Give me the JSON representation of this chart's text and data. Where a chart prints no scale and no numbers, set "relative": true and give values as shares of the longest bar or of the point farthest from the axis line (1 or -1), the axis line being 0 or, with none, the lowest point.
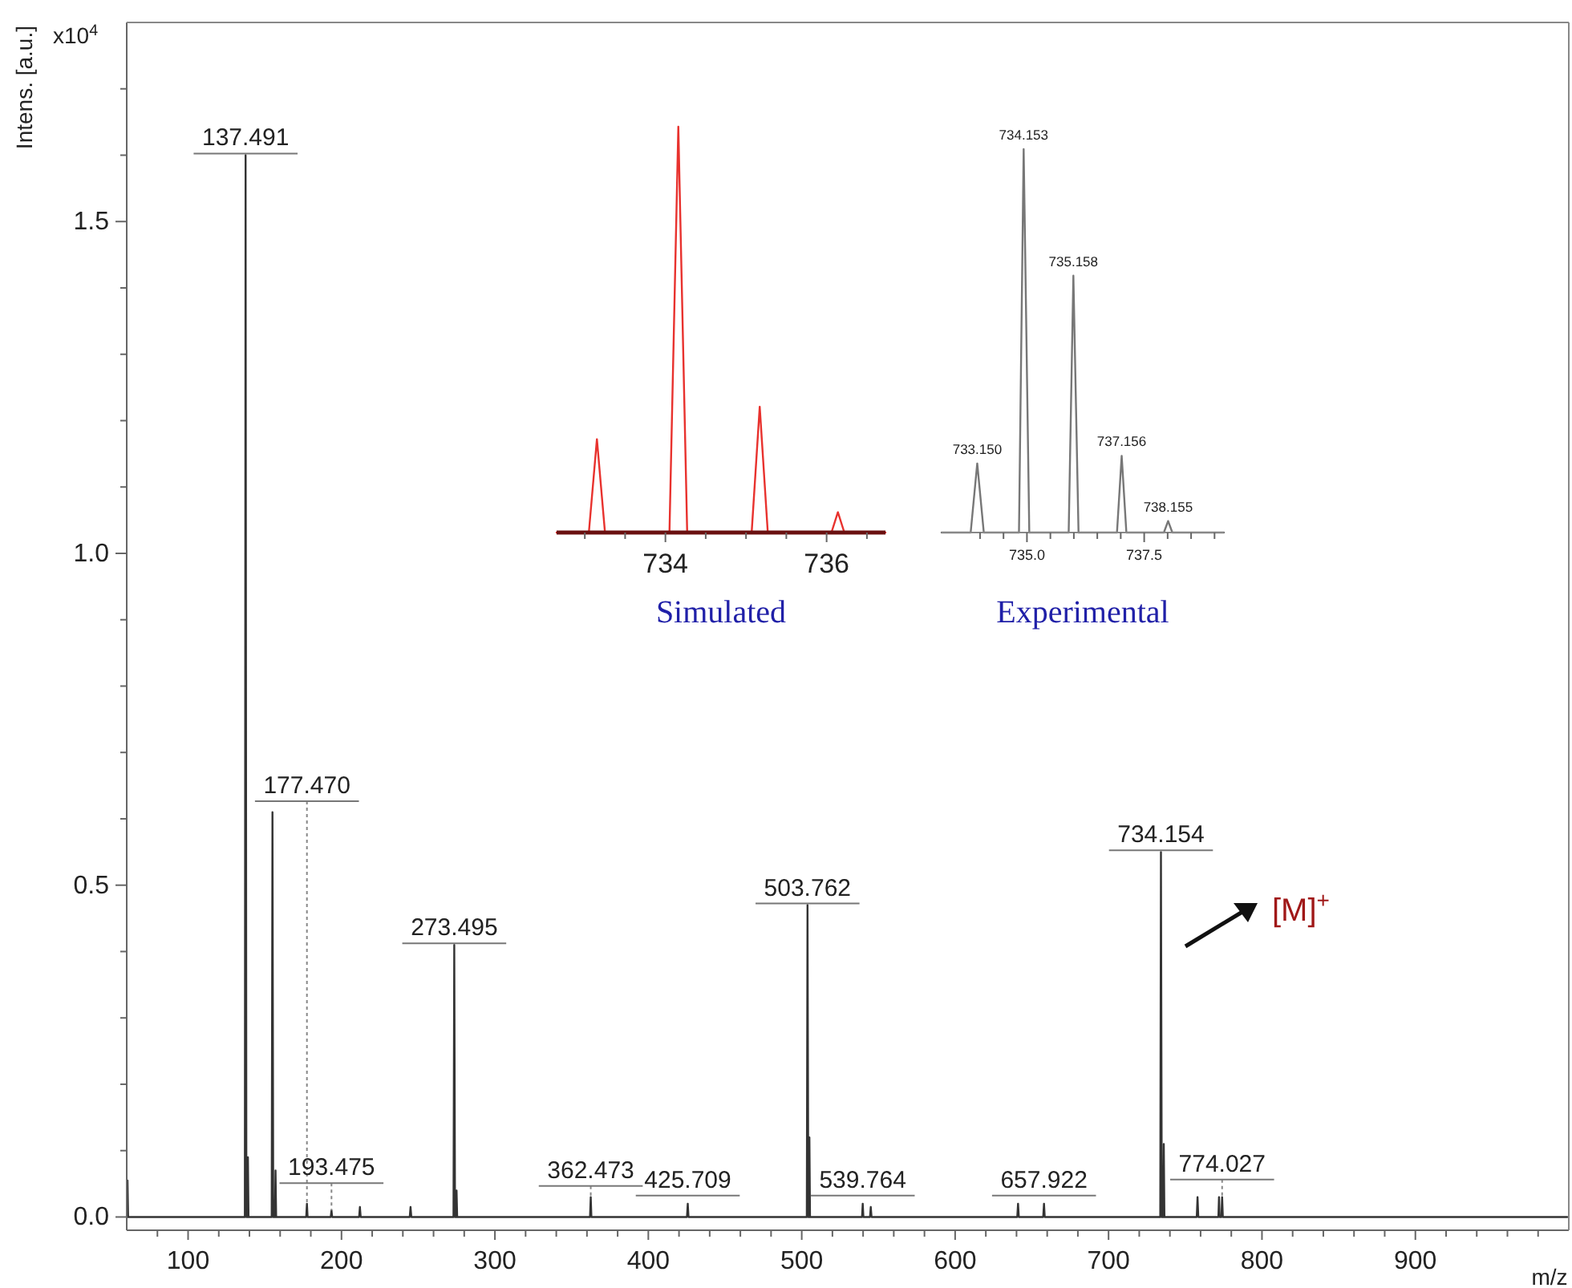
{
  "chart_data": [
    {
      "type": "line",
      "xlabel": "m/z",
      "ylabel": "Intens. [a.u.]",
      "xlim": [
        60,
        1000
      ],
      "ylim": [
        -0.02,
        1.8
      ],
      "xticks": [
        {
          "value": 80,
          "label": null
        },
        100,
        {
          "value": 120,
          "label": null
        },
        {
          "value": 140,
          "label": null
        },
        {
          "value": 160,
          "label": null
        },
        {
          "value": 180,
          "label": null
        },
        200,
        {
          "value": 220,
          "label": null
        },
        {
          "value": 240,
          "label": null
        },
        {
          "value": 260,
          "label": null
        },
        {
          "value": 280,
          "label": null
        },
        300,
        {
          "value": 320,
          "label": null
        },
        {
          "value": 340,
          "label": null
        },
        {
          "value": 360,
          "label": null
        },
        {
          "value": 380,
          "label": null
        },
        400,
        {
          "value": 420,
          "label": null
        },
        {
          "value": 440,
          "label": null
        },
        {
          "value": 460,
          "label": null
        },
        {
          "value": 480,
          "label": null
        },
        500,
        {
          "value": 520,
          "label": null
        },
        {
          "value": 540,
          "label": null
        },
        {
          "value": 560,
          "label": null
        },
        {
          "value": 580,
          "label": null
        },
        600,
        {
          "value": 620,
          "label": null
        },
        {
          "value": 640,
          "label": null
        },
        {
          "value": 660,
          "label": null
        },
        {
          "value": 680,
          "label": null
        },
        700,
        {
          "value": 720,
          "label": null
        },
        {
          "value": 740,
          "label": null
        },
        {
          "value": 760,
          "label": null
        },
        {
          "value": 780,
          "label": null
        },
        800,
        {
          "value": 820,
          "label": null
        },
        {
          "value": 840,
          "label": null
        },
        {
          "value": 860,
          "label": null
        },
        {
          "value": 880,
          "label": null
        },
        900,
        {
          "value": 920,
          "label": null
        },
        {
          "value": 940,
          "label": null
        },
        {
          "value": 960,
          "label": null
        },
        {
          "value": 980,
          "label": null
        }
      ],
      "yticks": [
        {
          "value": 0,
          "label": "0.0"
        },
        {
          "value": 0.1,
          "label": null
        },
        {
          "value": 0.2,
          "label": null
        },
        {
          "value": 0.3,
          "label": null
        },
        {
          "value": 0.4,
          "label": null
        },
        0.5,
        {
          "value": 0.6,
          "label": null
        },
        {
          "value": 0.7,
          "label": null
        },
        {
          "value": 0.8,
          "label": null
        },
        {
          "value": 0.9,
          "label": null
        },
        {
          "value": 1,
          "label": "1.0"
        },
        {
          "value": 1.1,
          "label": null
        },
        {
          "value": 1.2,
          "label": null
        },
        {
          "value": 1.3,
          "label": null
        },
        {
          "value": 1.4,
          "label": null
        },
        1.5,
        {
          "value": 1.6,
          "label": null
        },
        {
          "value": 1.7,
          "label": null
        }
      ],
      "series": [
        {
          "color": "#333333",
          "x": [
            60.1,
            60.5,
            60.9,
            137.0,
            137.49,
            138.0,
            138.6,
            139.0,
            139.4,
            154.5,
            155.0,
            155.5,
            156.6,
            157.0,
            157.4,
            177.0,
            177.47,
            177.9,
            193.0,
            193.48,
            193.9,
            211.5,
            212.0,
            212.5,
            244.5,
            245.0,
            245.5,
            273.0,
            273.5,
            274.0,
            274.6,
            275.0,
            275.4,
            362.0,
            362.47,
            362.9,
            425.2,
            425.71,
            426.2,
            503.3,
            503.76,
            504.3,
            504.6,
            505.0,
            505.4,
            539.3,
            539.76,
            540.2,
            544.5,
            545.0,
            545.5,
            640.5,
            641.0,
            641.5,
            657.4,
            657.92,
            658.4,
            733.7,
            734.15,
            734.7,
            735.6,
            736.0,
            736.4,
            757.5,
            758.0,
            758.5,
            771.6,
            772.0,
            772.4,
            773.6,
            774.03,
            774.5,
            999.0
          ],
          "values": [
            0,
            0.055,
            0,
            0,
            1.6,
            0,
            0,
            0.09,
            0,
            0,
            0.61,
            0,
            0,
            0.07,
            0,
            0,
            0.02,
            0,
            0,
            0.01,
            0,
            0,
            0.015,
            0,
            0,
            0.015,
            0,
            0,
            0.41,
            0,
            0,
            0.04,
            0,
            0,
            0.03,
            0,
            0,
            0.02,
            0,
            0,
            0.47,
            0,
            0,
            0.12,
            0,
            0,
            0.02,
            0,
            0,
            0.015,
            0,
            0,
            0.02,
            0,
            0,
            0.02,
            0,
            0,
            0.55,
            0,
            0,
            0.11,
            0,
            0,
            0.03,
            0,
            0,
            0.03,
            0,
            0,
            0.03,
            0,
            0
          ]
        }
      ],
      "annotations": [
        "x10$^{4}$",
        "[M]$^{+}$",
        {
          "text": "137.491",
          "x": 137.491,
          "y": 1.6
        },
        {
          "text": "177.470",
          "x": 177.47,
          "y": 0.02
        },
        {
          "text": "193.475",
          "x": 193.475,
          "y": 0.01
        },
        {
          "text": "273.495",
          "x": 273.495,
          "y": 0.41
        },
        {
          "text": "362.473",
          "x": 362.473,
          "y": 0.03
        },
        {
          "text": "425.709",
          "x": 425.709,
          "y": 0.03
        },
        {
          "text": "503.762",
          "x": 503.762,
          "y": 0.47
        },
        {
          "text": "539.764",
          "x": 539.764,
          "y": 0.03
        },
        {
          "text": "657.922",
          "x": 657.922,
          "y": 0.03
        },
        {
          "text": "734.154",
          "x": 734.154,
          "y": 0.55
        },
        {
          "text": "774.027",
          "x": 774.027,
          "y": 0.03
        }
      ]
    },
    {
      "type": "line",
      "title": "Simulated",
      "relative": true,
      "xlim": [
        732.65,
        736.73
      ],
      "xticks": [
        {
          "value": 733,
          "label": null
        },
        {
          "value": 733.5,
          "label": null
        },
        734,
        {
          "value": 734.5,
          "label": null
        },
        {
          "value": 735,
          "label": null
        },
        {
          "value": 735.5,
          "label": null
        },
        736,
        {
          "value": 736.5,
          "label": null
        }
      ],
      "series": [
        {
          "color": "#e8322e",
          "x": [
            732.65,
            733.05,
            733.15,
            733.25,
            734.05,
            734.16,
            734.27,
            735.07,
            735.17,
            735.27,
            736.06,
            736.14,
            736.22,
            736.73
          ],
          "values": [
            0,
            0,
            0.23,
            0,
            0,
            1,
            0,
            0,
            0.31,
            0,
            0,
            0.05,
            0,
            0
          ]
        }
      ]
    },
    {
      "type": "line",
      "title": "Experimental",
      "relative": true,
      "xlim": [
        733.18,
        739.2
      ],
      "xticks": [
        {
          "value": 734,
          "label": null
        },
        {
          "value": 734.5,
          "label": null
        },
        {
          "value": 735,
          "label": "735.0"
        },
        {
          "value": 735.5,
          "label": null
        },
        {
          "value": 736,
          "label": null
        },
        {
          "value": 736.5,
          "label": null
        },
        {
          "value": 737,
          "label": null
        },
        {
          "value": 737.5,
          "label": "737.5"
        },
        {
          "value": 738,
          "label": null
        },
        {
          "value": 738.5,
          "label": null
        },
        {
          "value": 739,
          "label": null
        }
      ],
      "series": [
        {
          "color": "#777777",
          "x": [
            733.18,
            733.8,
            733.94,
            734.08,
            734.83,
            734.93,
            735.05,
            735.89,
            735.99,
            736.1,
            736.92,
            737.02,
            737.12,
            737.92,
            738.01,
            738.1,
            739.2
          ],
          "values": [
            0,
            0,
            0.18,
            0,
            0,
            1,
            0,
            0,
            0.67,
            0,
            0,
            0.2,
            0,
            0,
            0.03,
            0,
            0
          ]
        }
      ],
      "annotations": [
        {
          "text": "733.150",
          "x": 733.94,
          "y": 0.18
        },
        {
          "text": "734.153",
          "x": 734.93,
          "y": 1
        },
        {
          "text": "735.158",
          "x": 735.99,
          "y": 0.67
        },
        {
          "text": "737.156",
          "x": 737.02,
          "y": 0.2
        },
        {
          "text": "738.155",
          "x": 738.01,
          "y": 0.03
        }
      ]
    }
  ]
}
